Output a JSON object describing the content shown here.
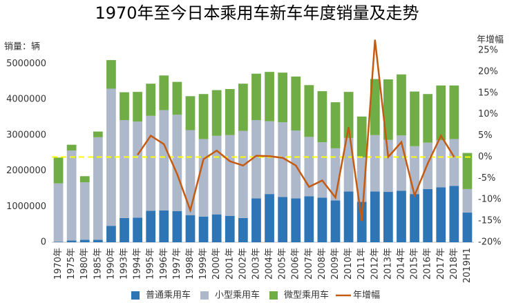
{
  "chart_data": {
    "type": "bar+line",
    "title": "1970年至今日本乘用车新车年度销量及走势",
    "y_label": "销量：辆",
    "y2_label": "年增幅",
    "stacked": true,
    "categories": [
      "1970年",
      "1975年",
      "1980年",
      "1985年",
      "1990年",
      "1993年",
      "1994年",
      "1995年",
      "1996年",
      "1997年",
      "1998年",
      "1999年",
      "2000年",
      "2001年",
      "2002年",
      "2003年",
      "2004年",
      "2005年",
      "2006年",
      "2007年",
      "2008年",
      "2009年",
      "2010年",
      "2011年",
      "2012年",
      "2013年",
      "2014年",
      "2015年",
      "2016年",
      "2017年",
      "2018年",
      "2019H1"
    ],
    "series": [
      {
        "name": "普通乘用车",
        "color": "#2e75b6",
        "type": "bar",
        "values": [
          10000,
          50000,
          70000,
          70000,
          460000,
          680000,
          690000,
          880000,
          890000,
          870000,
          760000,
          720000,
          780000,
          740000,
          680000,
          1230000,
          1350000,
          1270000,
          1230000,
          1290000,
          1250000,
          1170000,
          1420000,
          1130000,
          1420000,
          1410000,
          1440000,
          1350000,
          1490000,
          1540000,
          1580000,
          830000
        ]
      },
      {
        "name": "小型乘用车",
        "color": "#adb9ca",
        "type": "bar",
        "values": [
          1640000,
          2520000,
          1610000,
          2870000,
          3840000,
          2740000,
          2690000,
          2660000,
          2810000,
          2700000,
          2380000,
          2170000,
          2200000,
          2260000,
          2440000,
          2190000,
          2040000,
          2090000,
          1900000,
          1660000,
          1550000,
          1460000,
          1500000,
          1250000,
          1580000,
          1460000,
          1550000,
          1340000,
          1300000,
          1320000,
          1310000,
          660000
        ]
      },
      {
        "name": "微型乘用车",
        "color": "#70ad47",
        "type": "bar",
        "values": [
          720000,
          160000,
          170000,
          160000,
          800000,
          780000,
          830000,
          900000,
          970000,
          920000,
          950000,
          1260000,
          1280000,
          1290000,
          1320000,
          1300000,
          1380000,
          1390000,
          1510000,
          1450000,
          1430000,
          1290000,
          1290000,
          1140000,
          1570000,
          1690000,
          1710000,
          1530000,
          1360000,
          1530000,
          1500000,
          1010000
        ]
      },
      {
        "name": "年增幅",
        "color": "#c55a11",
        "type": "line",
        "axis": "y2",
        "values": [
          null,
          null,
          null,
          null,
          null,
          null,
          0.5,
          5,
          3,
          -4,
          -12.5,
          -0.5,
          1.5,
          -1,
          -2,
          0.3,
          0.2,
          -0.2,
          -2,
          -7,
          -5.5,
          -9.5,
          7,
          -15,
          27.5,
          0,
          3.5,
          -9,
          -1.5,
          5,
          0,
          null
        ]
      }
    ],
    "reference_line": {
      "axis": "y2",
      "value": 0,
      "color": "#ffff00"
    },
    "ylim": [
      0,
      5430000
    ],
    "yticks": [
      0,
      1000000,
      2000000,
      3000000,
      4000000,
      5000000
    ],
    "y2lim": [
      -20,
      25.5
    ],
    "y2ticks": [
      {
        "value": -20,
        "label": "-20%"
      },
      {
        "value": -15,
        "label": "-15%"
      },
      {
        "value": -10,
        "label": "-10%"
      },
      {
        "value": -5,
        "label": "-5%"
      },
      {
        "value": 0,
        "label": "0%"
      },
      {
        "value": 5,
        "label": "5%"
      },
      {
        "value": 10,
        "label": "10%"
      },
      {
        "value": 15,
        "label": "15%"
      },
      {
        "value": 20,
        "label": "20%"
      },
      {
        "value": 25,
        "label": "25%"
      }
    ],
    "legend": "bottom",
    "grid": false
  }
}
